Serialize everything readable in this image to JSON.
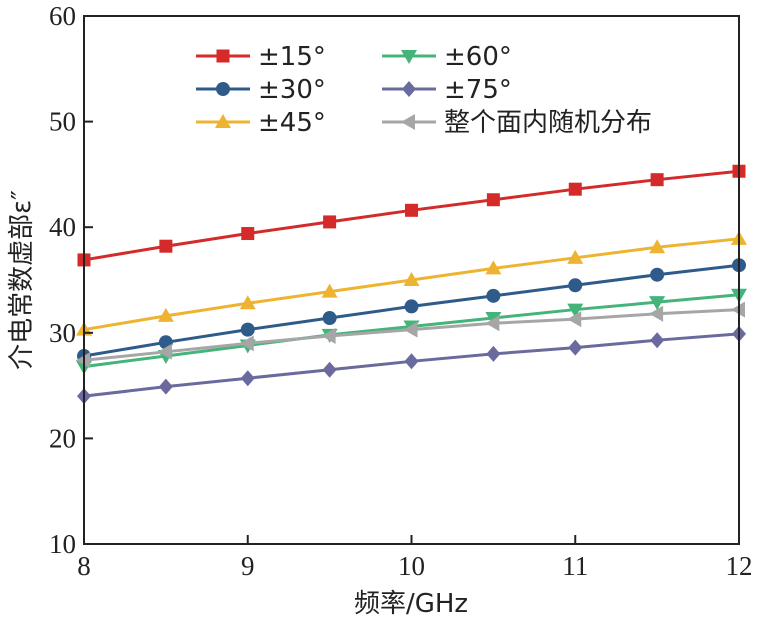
{
  "chart_data": {
    "type": "line",
    "title": "",
    "xlabel": "频率/GHz",
    "ylabel": "介电常数虚部ε″",
    "xlim": [
      8,
      12
    ],
    "ylim": [
      10,
      60
    ],
    "xticks": [
      8,
      9,
      10,
      11,
      12
    ],
    "yticks": [
      10,
      20,
      30,
      40,
      50,
      60
    ],
    "grid": false,
    "legend_position": "top",
    "x": [
      8,
      8.5,
      9,
      9.5,
      10,
      10.5,
      11,
      11.5,
      12
    ],
    "series": [
      {
        "name": "±15°",
        "color": "#d42a2a",
        "marker": "square",
        "values": [
          36.9,
          38.2,
          39.4,
          40.5,
          41.6,
          42.6,
          43.6,
          44.5,
          45.3
        ]
      },
      {
        "name": "±30°",
        "color": "#2e5b8a",
        "marker": "circle",
        "values": [
          27.8,
          29.1,
          30.3,
          31.4,
          32.5,
          33.5,
          34.5,
          35.5,
          36.4
        ]
      },
      {
        "name": "±45°",
        "color": "#eeb431",
        "marker": "triangle-up",
        "values": [
          30.3,
          31.6,
          32.8,
          33.9,
          35.0,
          36.1,
          37.1,
          38.1,
          38.9
        ]
      },
      {
        "name": "±60°",
        "color": "#45b47a",
        "marker": "triangle-down",
        "values": [
          26.8,
          27.8,
          28.8,
          29.8,
          30.6,
          31.4,
          32.2,
          32.9,
          33.6
        ]
      },
      {
        "name": "±75°",
        "color": "#6a6a9e",
        "marker": "diamond",
        "values": [
          24.0,
          24.9,
          25.7,
          26.5,
          27.3,
          28.0,
          28.6,
          29.3,
          29.9
        ]
      },
      {
        "name": "整个面内随机分布",
        "color": "#a6a6a6",
        "marker": "triangle-left",
        "values": [
          27.4,
          28.2,
          29.0,
          29.7,
          30.3,
          30.9,
          31.3,
          31.8,
          32.2
        ]
      }
    ]
  }
}
